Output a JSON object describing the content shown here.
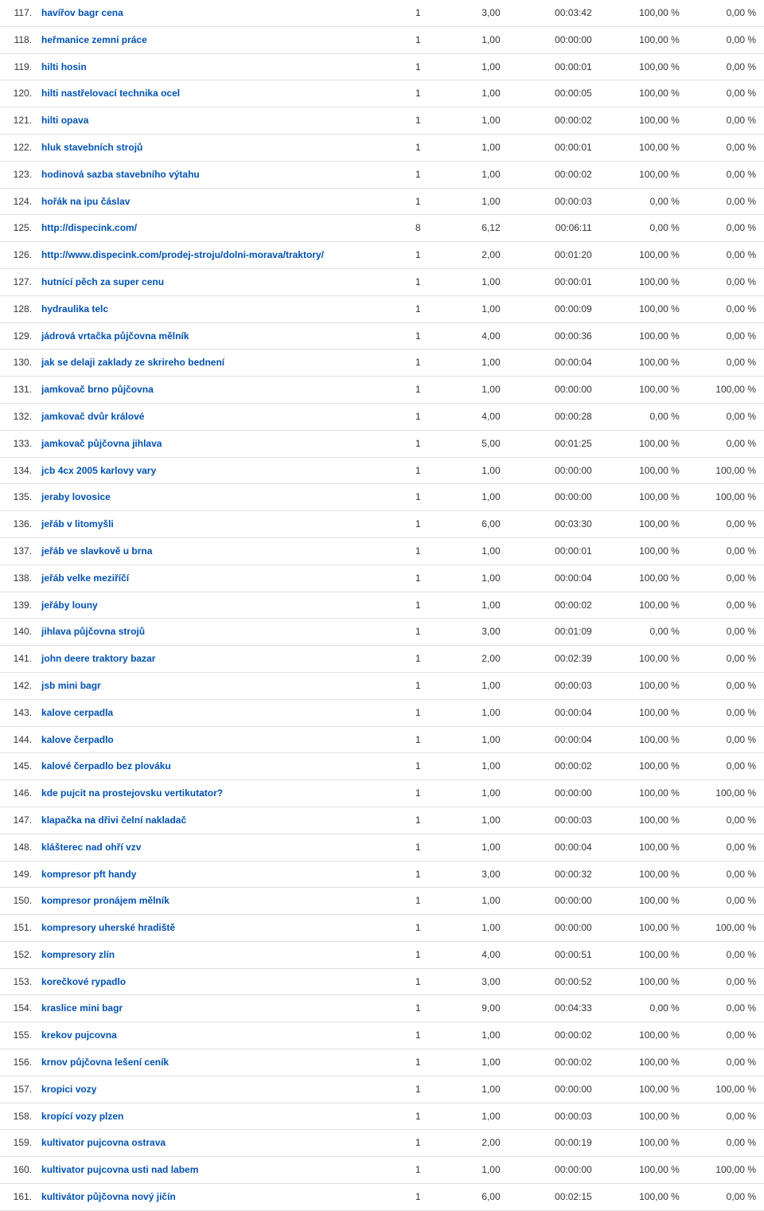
{
  "link_color": "#0052b3",
  "text_color": "#333333",
  "border_color": "#e0e0e0",
  "rows": [
    {
      "idx": "117.",
      "kw": "havířov bagr cena",
      "c1": "1",
      "c2": "3,00",
      "time": "00:03:42",
      "p1": "100,00 %",
      "p2": "0,00 %"
    },
    {
      "idx": "118.",
      "kw": "heřmanice zemni práce",
      "c1": "1",
      "c2": "1,00",
      "time": "00:00:00",
      "p1": "100,00 %",
      "p2": "0,00 %"
    },
    {
      "idx": "119.",
      "kw": "hilti hosin",
      "c1": "1",
      "c2": "1,00",
      "time": "00:00:01",
      "p1": "100,00 %",
      "p2": "0,00 %"
    },
    {
      "idx": "120.",
      "kw": "hilti nastřelovací technika ocel",
      "c1": "1",
      "c2": "1,00",
      "time": "00:00:05",
      "p1": "100,00 %",
      "p2": "0,00 %"
    },
    {
      "idx": "121.",
      "kw": "hilti opava",
      "c1": "1",
      "c2": "1,00",
      "time": "00:00:02",
      "p1": "100,00 %",
      "p2": "0,00 %"
    },
    {
      "idx": "122.",
      "kw": "hluk stavebních strojů",
      "c1": "1",
      "c2": "1,00",
      "time": "00:00:01",
      "p1": "100,00 %",
      "p2": "0,00 %"
    },
    {
      "idx": "123.",
      "kw": "hodinová sazba stavebního výtahu",
      "c1": "1",
      "c2": "1,00",
      "time": "00:00:02",
      "p1": "100,00 %",
      "p2": "0,00 %"
    },
    {
      "idx": "124.",
      "kw": "hořák na ipu čáslav",
      "c1": "1",
      "c2": "1,00",
      "time": "00:00:03",
      "p1": "0,00 %",
      "p2": "0,00 %"
    },
    {
      "idx": "125.",
      "kw": "http://dispecink.com/",
      "c1": "8",
      "c2": "6,12",
      "time": "00:06:11",
      "p1": "0,00 %",
      "p2": "0,00 %"
    },
    {
      "idx": "126.",
      "kw": "http://www.dispecink.com/prodej-stroju/dolni-morava/traktory/",
      "c1": "1",
      "c2": "2,00",
      "time": "00:01:20",
      "p1": "100,00 %",
      "p2": "0,00 %"
    },
    {
      "idx": "127.",
      "kw": "hutnící pěch za super cenu",
      "c1": "1",
      "c2": "1,00",
      "time": "00:00:01",
      "p1": "100,00 %",
      "p2": "0,00 %"
    },
    {
      "idx": "128.",
      "kw": "hydraulika telc",
      "c1": "1",
      "c2": "1,00",
      "time": "00:00:09",
      "p1": "100,00 %",
      "p2": "0,00 %"
    },
    {
      "idx": "129.",
      "kw": "jádrová vrtačka půjčovna mělník",
      "c1": "1",
      "c2": "4,00",
      "time": "00:00:36",
      "p1": "100,00 %",
      "p2": "0,00 %"
    },
    {
      "idx": "130.",
      "kw": "jak se delaji zaklady ze skrireho bednení",
      "c1": "1",
      "c2": "1,00",
      "time": "00:00:04",
      "p1": "100,00 %",
      "p2": "0,00 %"
    },
    {
      "idx": "131.",
      "kw": "jamkovač brno půjčovna",
      "c1": "1",
      "c2": "1,00",
      "time": "00:00:00",
      "p1": "100,00 %",
      "p2": "100,00 %"
    },
    {
      "idx": "132.",
      "kw": "jamkovač dvůr králové",
      "c1": "1",
      "c2": "4,00",
      "time": "00:00:28",
      "p1": "0,00 %",
      "p2": "0,00 %"
    },
    {
      "idx": "133.",
      "kw": "jamkovač půjčovna jihlava",
      "c1": "1",
      "c2": "5,00",
      "time": "00:01:25",
      "p1": "100,00 %",
      "p2": "0,00 %"
    },
    {
      "idx": "134.",
      "kw": "jcb 4cx 2005 karlovy vary",
      "c1": "1",
      "c2": "1,00",
      "time": "00:00:00",
      "p1": "100,00 %",
      "p2": "100,00 %"
    },
    {
      "idx": "135.",
      "kw": "jeraby lovosice",
      "c1": "1",
      "c2": "1,00",
      "time": "00:00:00",
      "p1": "100,00 %",
      "p2": "100,00 %"
    },
    {
      "idx": "136.",
      "kw": "jeřáb v litomyšli",
      "c1": "1",
      "c2": "6,00",
      "time": "00:03:30",
      "p1": "100,00 %",
      "p2": "0,00 %"
    },
    {
      "idx": "137.",
      "kw": "jeřáb ve slavkově u brna",
      "c1": "1",
      "c2": "1,00",
      "time": "00:00:01",
      "p1": "100,00 %",
      "p2": "0,00 %"
    },
    {
      "idx": "138.",
      "kw": "jeřáb velke meziříčí",
      "c1": "1",
      "c2": "1,00",
      "time": "00:00:04",
      "p1": "100,00 %",
      "p2": "0,00 %"
    },
    {
      "idx": "139.",
      "kw": "jeřáby louny",
      "c1": "1",
      "c2": "1,00",
      "time": "00:00:02",
      "p1": "100,00 %",
      "p2": "0,00 %"
    },
    {
      "idx": "140.",
      "kw": "jihlava půjčovna strojů",
      "c1": "1",
      "c2": "3,00",
      "time": "00:01:09",
      "p1": "0,00 %",
      "p2": "0,00 %"
    },
    {
      "idx": "141.",
      "kw": "john deere traktory bazar",
      "c1": "1",
      "c2": "2,00",
      "time": "00:02:39",
      "p1": "100,00 %",
      "p2": "0,00 %"
    },
    {
      "idx": "142.",
      "kw": "jsb mini bagr",
      "c1": "1",
      "c2": "1,00",
      "time": "00:00:03",
      "p1": "100,00 %",
      "p2": "0,00 %"
    },
    {
      "idx": "143.",
      "kw": "kalove cerpadla",
      "c1": "1",
      "c2": "1,00",
      "time": "00:00:04",
      "p1": "100,00 %",
      "p2": "0,00 %"
    },
    {
      "idx": "144.",
      "kw": "kalove čerpadlo",
      "c1": "1",
      "c2": "1,00",
      "time": "00:00:04",
      "p1": "100,00 %",
      "p2": "0,00 %"
    },
    {
      "idx": "145.",
      "kw": "kalové čerpadlo bez plováku",
      "c1": "1",
      "c2": "1,00",
      "time": "00:00:02",
      "p1": "100,00 %",
      "p2": "0,00 %"
    },
    {
      "idx": "146.",
      "kw": "kde pujcit na prostejovsku vertikutator?",
      "c1": "1",
      "c2": "1,00",
      "time": "00:00:00",
      "p1": "100,00 %",
      "p2": "100,00 %"
    },
    {
      "idx": "147.",
      "kw": "klapačka na dřivi čelní nakladač",
      "c1": "1",
      "c2": "1,00",
      "time": "00:00:03",
      "p1": "100,00 %",
      "p2": "0,00 %"
    },
    {
      "idx": "148.",
      "kw": "klášterec nad ohří vzv",
      "c1": "1",
      "c2": "1,00",
      "time": "00:00:04",
      "p1": "100,00 %",
      "p2": "0,00 %"
    },
    {
      "idx": "149.",
      "kw": "kompresor pft handy",
      "c1": "1",
      "c2": "3,00",
      "time": "00:00:32",
      "p1": "100,00 %",
      "p2": "0,00 %"
    },
    {
      "idx": "150.",
      "kw": "kompresor pronájem mělník",
      "c1": "1",
      "c2": "1,00",
      "time": "00:00:00",
      "p1": "100,00 %",
      "p2": "0,00 %"
    },
    {
      "idx": "151.",
      "kw": "kompresory uherské hradiště",
      "c1": "1",
      "c2": "1,00",
      "time": "00:00:00",
      "p1": "100,00 %",
      "p2": "100,00 %"
    },
    {
      "idx": "152.",
      "kw": "kompresory zlín",
      "c1": "1",
      "c2": "4,00",
      "time": "00:00:51",
      "p1": "100,00 %",
      "p2": "0,00 %"
    },
    {
      "idx": "153.",
      "kw": "korečkové rypadlo",
      "c1": "1",
      "c2": "3,00",
      "time": "00:00:52",
      "p1": "100,00 %",
      "p2": "0,00 %"
    },
    {
      "idx": "154.",
      "kw": "kraslice mini bagr",
      "c1": "1",
      "c2": "9,00",
      "time": "00:04:33",
      "p1": "0,00 %",
      "p2": "0,00 %"
    },
    {
      "idx": "155.",
      "kw": "krekov pujcovna",
      "c1": "1",
      "c2": "1,00",
      "time": "00:00:02",
      "p1": "100,00 %",
      "p2": "0,00 %"
    },
    {
      "idx": "156.",
      "kw": "krnov půjčovna lešení ceník",
      "c1": "1",
      "c2": "1,00",
      "time": "00:00:02",
      "p1": "100,00 %",
      "p2": "0,00 %"
    },
    {
      "idx": "157.",
      "kw": "kropici vozy",
      "c1": "1",
      "c2": "1,00",
      "time": "00:00:00",
      "p1": "100,00 %",
      "p2": "100,00 %"
    },
    {
      "idx": "158.",
      "kw": "kropící vozy plzen",
      "c1": "1",
      "c2": "1,00",
      "time": "00:00:03",
      "p1": "100,00 %",
      "p2": "0,00 %"
    },
    {
      "idx": "159.",
      "kw": "kultivator pujcovna ostrava",
      "c1": "1",
      "c2": "2,00",
      "time": "00:00:19",
      "p1": "100,00 %",
      "p2": "0,00 %"
    },
    {
      "idx": "160.",
      "kw": "kultivator pujcovna usti nad labem",
      "c1": "1",
      "c2": "1,00",
      "time": "00:00:00",
      "p1": "100,00 %",
      "p2": "100,00 %"
    },
    {
      "idx": "161.",
      "kw": "kultivátor půjčovna nový jičín",
      "c1": "1",
      "c2": "6,00",
      "time": "00:02:15",
      "p1": "100,00 %",
      "p2": "0,00 %"
    }
  ]
}
